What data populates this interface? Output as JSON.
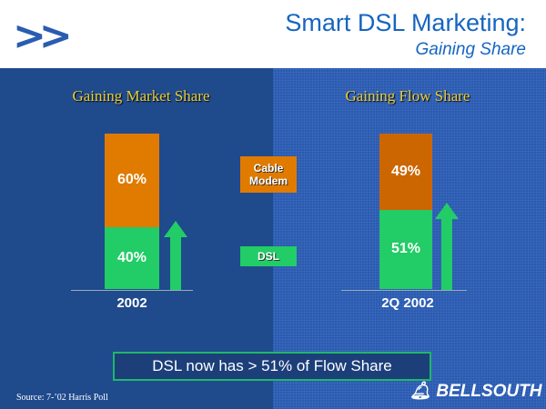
{
  "header": {
    "title": "Smart DSL Marketing:",
    "subtitle": "Gaining Share",
    "logo": ">>"
  },
  "chart_data": [
    {
      "type": "bar",
      "stacked": true,
      "title": "Gaining Market Share",
      "categories": [
        "2002"
      ],
      "series": [
        {
          "name": "DSL",
          "values": [
            40
          ],
          "label": "40%",
          "color": "#22cc66"
        },
        {
          "name": "Cable Modem",
          "values": [
            60
          ],
          "label": "60%",
          "color": "#e07b00"
        }
      ]
    },
    {
      "type": "bar",
      "stacked": true,
      "title": "Gaining Flow Share",
      "categories": [
        "2Q 2002"
      ],
      "series": [
        {
          "name": "DSL",
          "values": [
            51
          ],
          "label": "51%",
          "color": "#22cc66"
        },
        {
          "name": "Cable Modem",
          "values": [
            49
          ],
          "label": "49%",
          "color": "#cc6600"
        }
      ]
    }
  ],
  "legend": {
    "cable": "Cable Modem",
    "dsl": "DSL"
  },
  "callout": "DSL now has > 51% of Flow Share",
  "source": "Source:  7-’02 Harris Poll",
  "brand": "BELLSOUTH"
}
